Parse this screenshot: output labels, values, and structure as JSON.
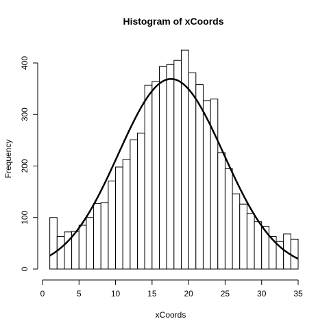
{
  "chart_data": {
    "type": "bar",
    "title": "Histogram of xCoords",
    "xlabel": "xCoords",
    "ylabel": "Frequency",
    "xlim": [
      0,
      35
    ],
    "ylim": [
      0,
      425
    ],
    "x_ticks": [
      0,
      5,
      10,
      15,
      20,
      25,
      30,
      35
    ],
    "y_ticks": [
      0,
      100,
      200,
      300,
      400
    ],
    "bin_width": 1,
    "bin_start": 1,
    "bins": [
      {
        "x0": 1,
        "x1": 2,
        "count": 100
      },
      {
        "x0": 2,
        "x1": 3,
        "count": 63
      },
      {
        "x0": 3,
        "x1": 4,
        "count": 72
      },
      {
        "x0": 4,
        "x1": 5,
        "count": 73
      },
      {
        "x0": 5,
        "x1": 6,
        "count": 85
      },
      {
        "x0": 6,
        "x1": 7,
        "count": 100
      },
      {
        "x0": 7,
        "x1": 8,
        "count": 127
      },
      {
        "x0": 8,
        "x1": 9,
        "count": 129
      },
      {
        "x0": 9,
        "x1": 10,
        "count": 171
      },
      {
        "x0": 10,
        "x1": 11,
        "count": 198
      },
      {
        "x0": 11,
        "x1": 12,
        "count": 213
      },
      {
        "x0": 12,
        "x1": 13,
        "count": 251
      },
      {
        "x0": 13,
        "x1": 14,
        "count": 264
      },
      {
        "x0": 14,
        "x1": 15,
        "count": 357
      },
      {
        "x0": 15,
        "x1": 16,
        "count": 364
      },
      {
        "x0": 16,
        "x1": 17,
        "count": 393
      },
      {
        "x0": 17,
        "x1": 18,
        "count": 397
      },
      {
        "x0": 18,
        "x1": 19,
        "count": 405
      },
      {
        "x0": 19,
        "x1": 20,
        "count": 425
      },
      {
        "x0": 20,
        "x1": 21,
        "count": 381
      },
      {
        "x0": 21,
        "x1": 22,
        "count": 358
      },
      {
        "x0": 22,
        "x1": 23,
        "count": 327
      },
      {
        "x0": 23,
        "x1": 24,
        "count": 330
      },
      {
        "x0": 24,
        "x1": 25,
        "count": 226
      },
      {
        "x0": 25,
        "x1": 26,
        "count": 195
      },
      {
        "x0": 26,
        "x1": 27,
        "count": 146
      },
      {
        "x0": 27,
        "x1": 28,
        "count": 126
      },
      {
        "x0": 28,
        "x1": 29,
        "count": 108
      },
      {
        "x0": 29,
        "x1": 30,
        "count": 92
      },
      {
        "x0": 30,
        "x1": 31,
        "count": 83
      },
      {
        "x0": 31,
        "x1": 32,
        "count": 63
      },
      {
        "x0": 32,
        "x1": 33,
        "count": 54
      },
      {
        "x0": 33,
        "x1": 34,
        "count": 68
      },
      {
        "x0": 34,
        "x1": 35,
        "count": 58
      }
    ],
    "overlay_curve": {
      "type": "normal_density_scaled",
      "mean": 17.6,
      "sd": 7.2,
      "peak_frequency": 369,
      "x_range": [
        1,
        35
      ],
      "color": "#000000"
    },
    "bar_fill": "#ffffff",
    "bar_stroke": "#000000",
    "grid": false,
    "legend": "none"
  }
}
